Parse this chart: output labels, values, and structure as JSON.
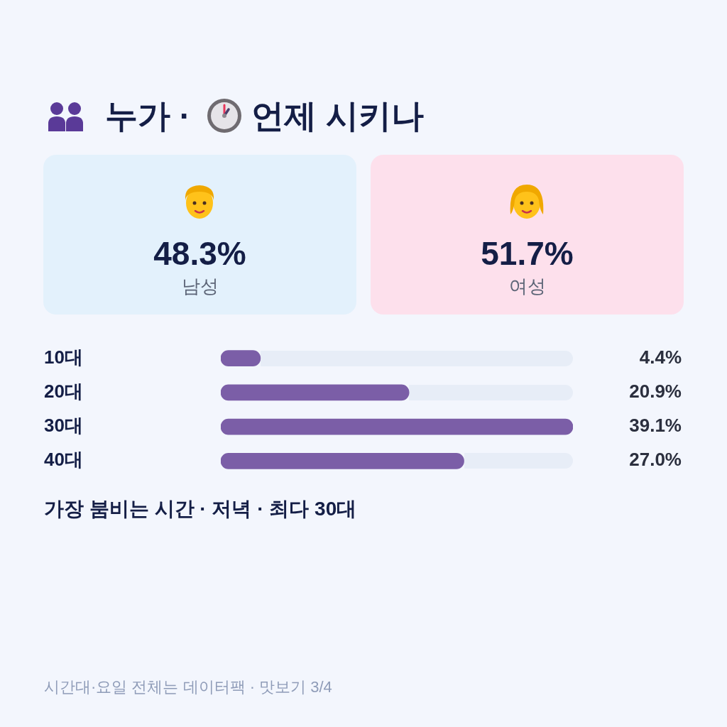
{
  "chart_data": [
    {
      "type": "other",
      "title": "누가 · 언제 시키나",
      "categories": [
        "남성",
        "여성"
      ],
      "values": [
        48.3,
        51.7
      ],
      "value_labels": [
        "48.3%",
        "51.7%"
      ],
      "colors": [
        "#e3f1fc",
        "#fde0ec"
      ]
    },
    {
      "type": "bar",
      "orientation": "horizontal",
      "categories": [
        "10대",
        "20대",
        "30대",
        "40대"
      ],
      "values": [
        4.4,
        20.9,
        39.1,
        27.0
      ],
      "value_labels": [
        "4.4%",
        "20.9%",
        "39.1%",
        "27.0%"
      ],
      "color": "#7b5ea7",
      "xlim": [
        0,
        39.1
      ],
      "tick_labels": "y",
      "grid": false,
      "legend": false,
      "annotations": [
        "가장 붐비는 시간 · 저녁 · 최다 30대",
        "시간대·요일 전체는 데이터팩 · 맛보기 3/4"
      ]
    }
  ]
}
